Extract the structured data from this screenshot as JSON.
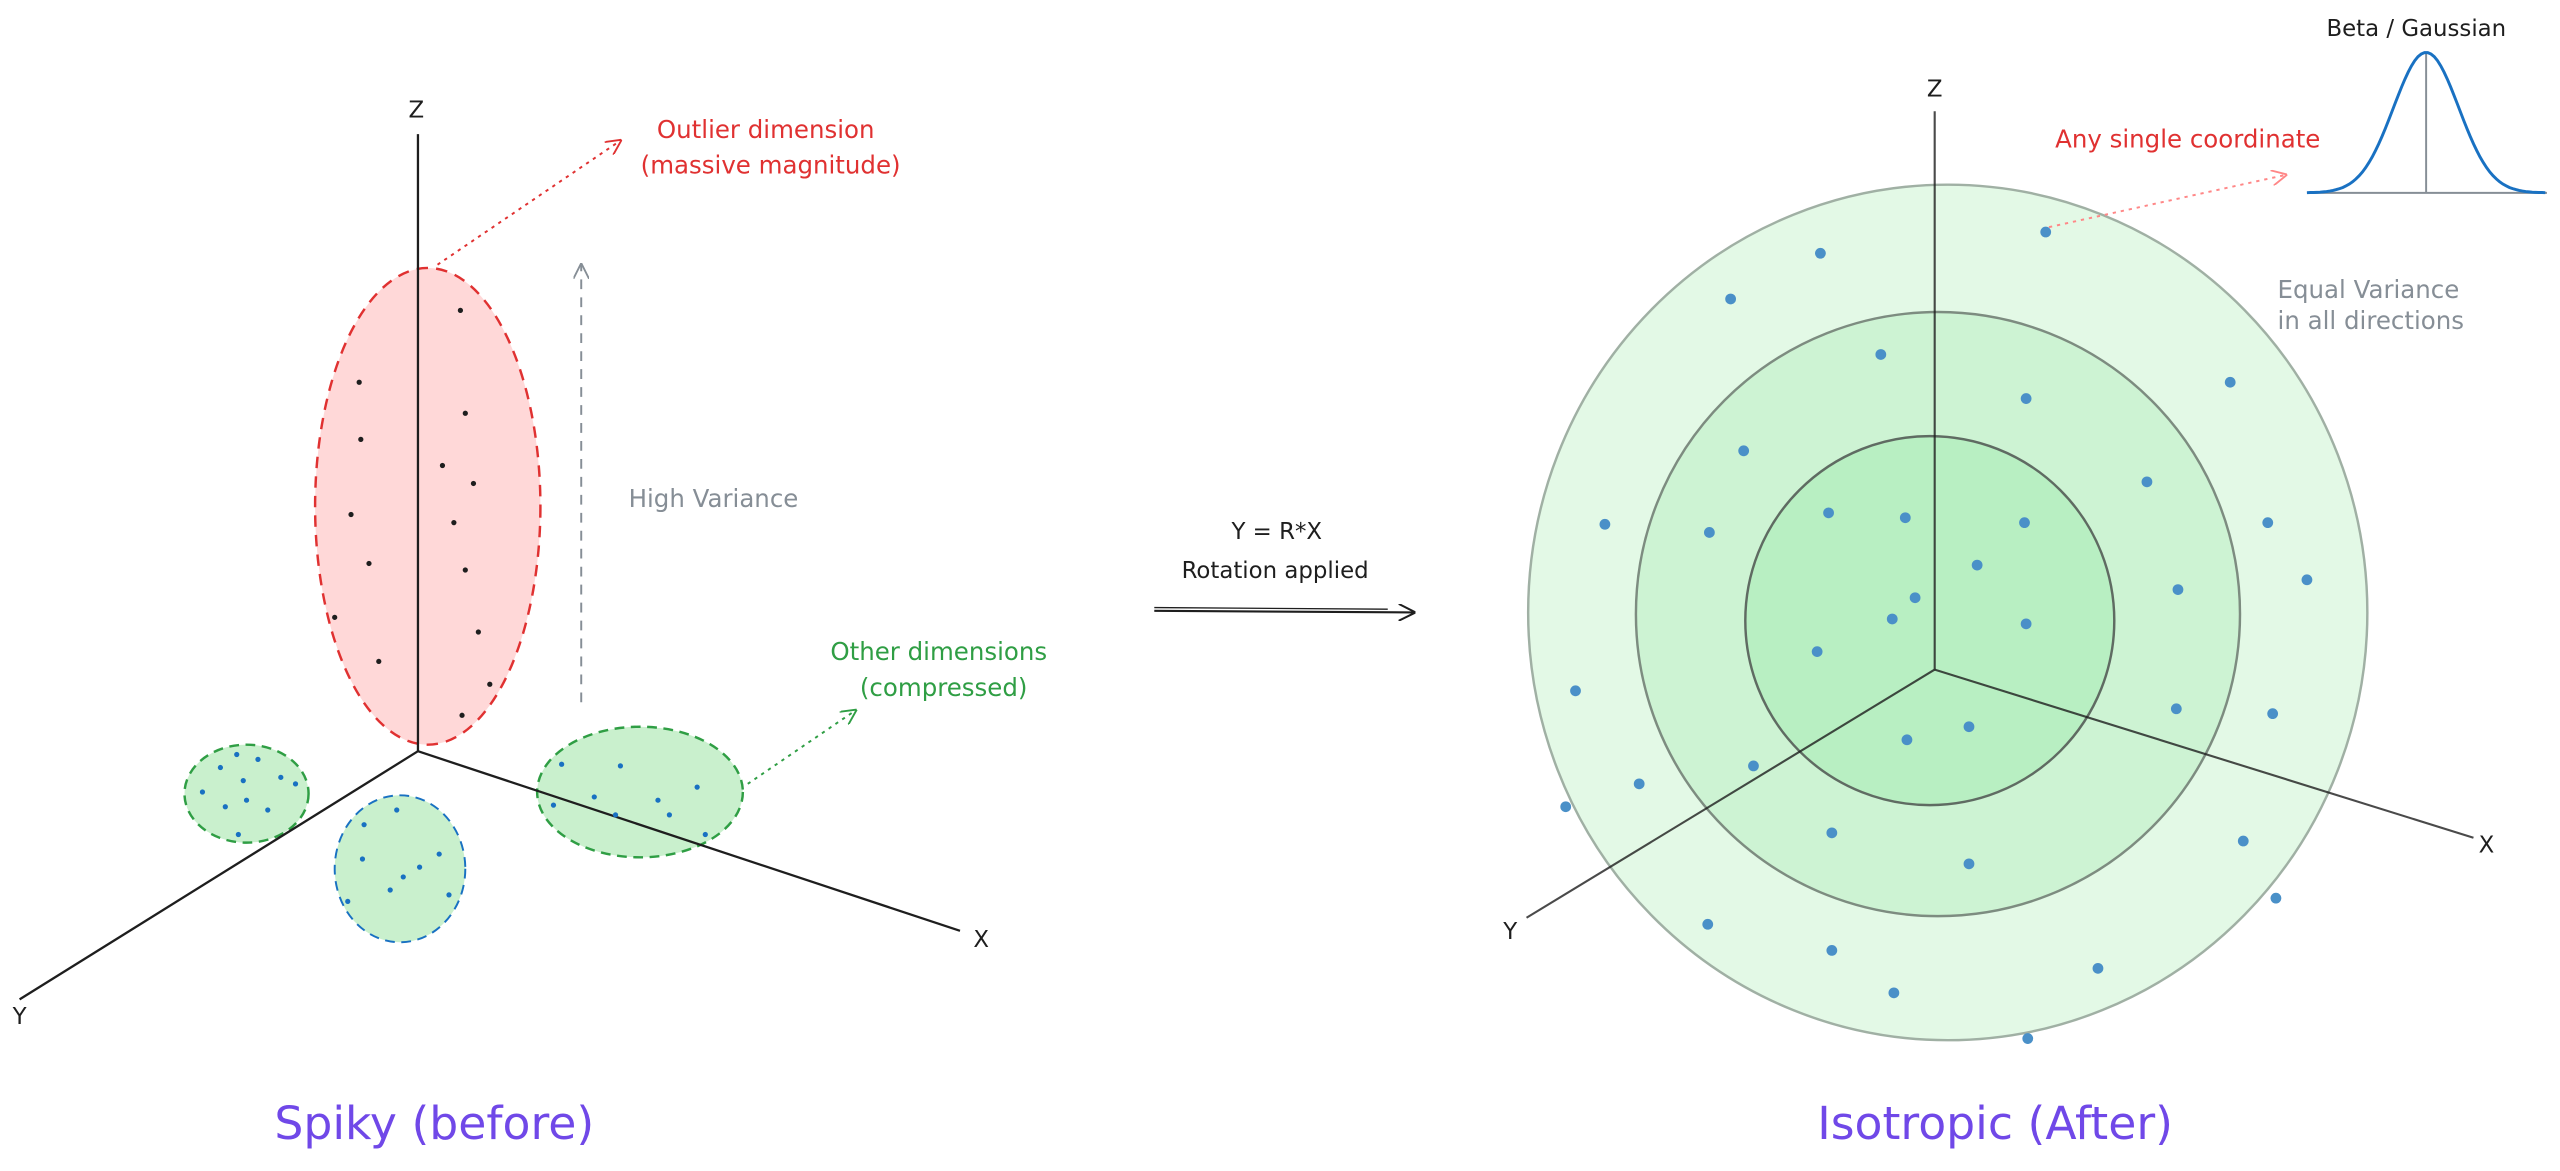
{
  "left_panel": {
    "title": "Spiky (before)",
    "axes": {
      "z": "Z",
      "x": "X",
      "y": "Y"
    },
    "annotations": {
      "outlier": [
        "Outlier dimension",
        "(massive magnitude)"
      ],
      "variance": "High Variance",
      "other": [
        "Other dimensions",
        "(compressed)"
      ]
    }
  },
  "transform": {
    "equation": "Y = R*X",
    "label": "Rotation applied"
  },
  "right_panel": {
    "title": "Isotropic (After)",
    "axes": {
      "z": "Z",
      "x": "X",
      "y": "Y"
    },
    "annotations": {
      "coordinate": "Any single coordinate",
      "variance": [
        "Equal Variance",
        "in all directions"
      ],
      "distribution": "Beta / Gaussian"
    }
  }
}
